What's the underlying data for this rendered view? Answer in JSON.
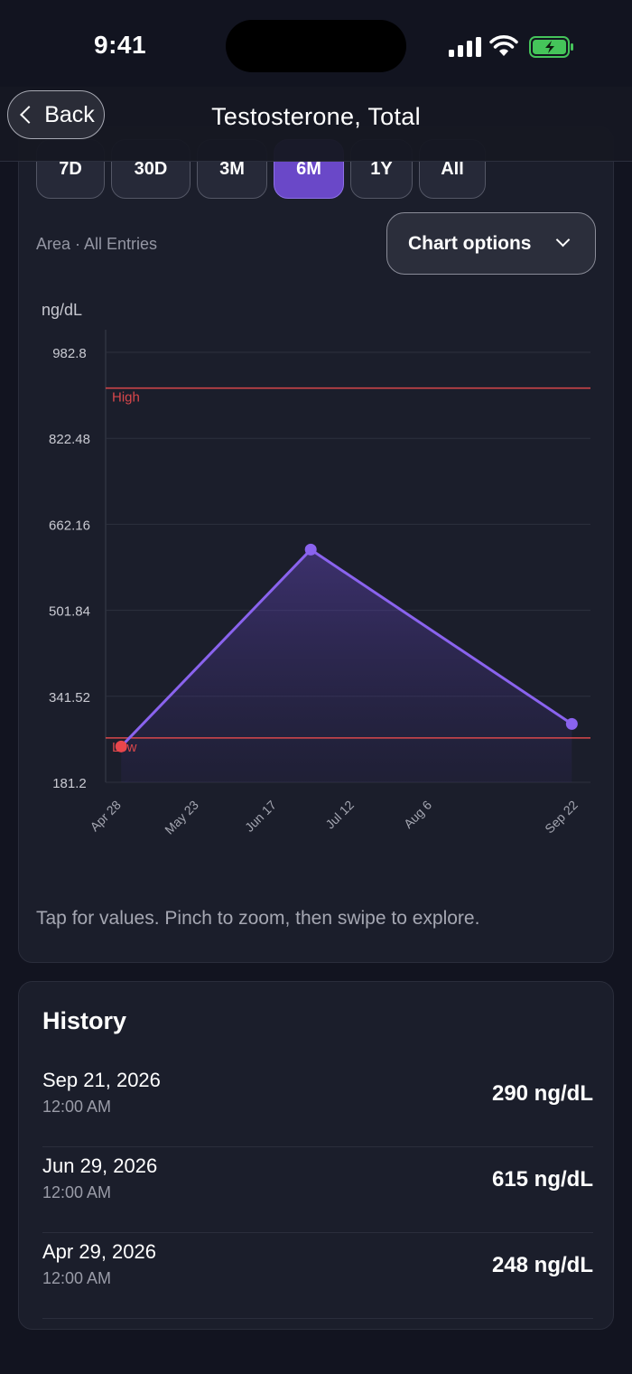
{
  "status": {
    "time": "9:41"
  },
  "nav": {
    "back_label": "Back",
    "title": "Testosterone, Total"
  },
  "ranges": [
    {
      "label": "7D",
      "active": false
    },
    {
      "label": "30D",
      "active": false
    },
    {
      "label": "3M",
      "active": false
    },
    {
      "label": "6M",
      "active": true
    },
    {
      "label": "1Y",
      "active": false
    },
    {
      "label": "All",
      "active": false
    }
  ],
  "chart_header": {
    "subtitle": "Area · All Entries",
    "options_label": "Chart options"
  },
  "chart_data": {
    "type": "area",
    "ylabel": "ng/dL",
    "ylim": [
      181.2,
      982.8
    ],
    "y_ticks": [
      "982.8",
      "822.48",
      "662.16",
      "501.84",
      "341.52",
      "181.2"
    ],
    "x_ticks": [
      "Apr 28",
      "May 23",
      "Jun 17",
      "Jul 12",
      "Aug 6",
      "Sep 22"
    ],
    "x_tick_days": [
      0,
      25,
      50,
      75,
      100,
      147
    ],
    "xlim_days": [
      -4,
      152
    ],
    "reference_lines": [
      {
        "label": "High",
        "value": 916,
        "color": "#d9474b"
      },
      {
        "label": "Low",
        "value": 264,
        "color": "#d9474b"
      }
    ],
    "series": [
      {
        "points": [
          {
            "day": 1,
            "date": "Apr 29, 2026",
            "value": 248,
            "color": "#e8464c"
          },
          {
            "day": 62,
            "date": "Jun 29, 2026",
            "value": 615,
            "color": "#8a63ee"
          },
          {
            "day": 146,
            "date": "Sep 21, 2026",
            "value": 290,
            "color": "#8a63ee"
          }
        ],
        "color": "#8a63ee"
      }
    ],
    "grid": true,
    "hint": "Tap for values. Pinch to zoom, then swipe to explore."
  },
  "history": {
    "title": "History",
    "items": [
      {
        "date": "Sep 21, 2026",
        "time": "12:00 AM",
        "value": "290 ng/dL"
      },
      {
        "date": "Jun 29, 2026",
        "time": "12:00 AM",
        "value": "615 ng/dL"
      },
      {
        "date": "Apr 29, 2026",
        "time": "12:00 AM",
        "value": "248 ng/dL"
      }
    ]
  }
}
